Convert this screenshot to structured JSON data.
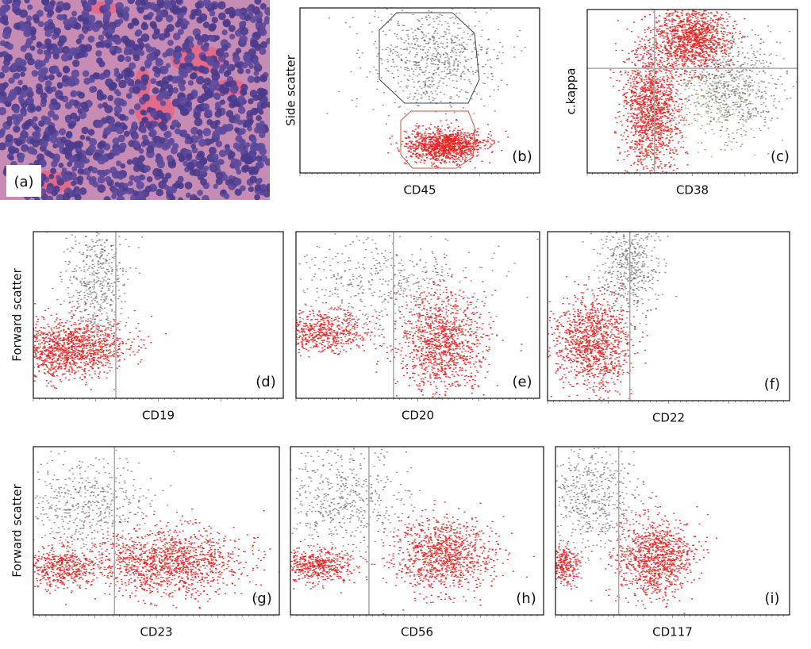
{
  "panels": [
    {
      "label": "(a)"
    },
    {
      "label": "(b)",
      "x_axis": "CD45",
      "y_axis": "Side scatter"
    },
    {
      "label": "(c)",
      "x_axis": "CD38",
      "y_axis": "c.kappa"
    },
    {
      "label": "(d)",
      "x_axis": "CD19",
      "y_axis": "Forward scatter"
    },
    {
      "label": "(e)",
      "x_axis": "CD20"
    },
    {
      "label": "(f)",
      "x_axis": "CD22"
    },
    {
      "label": "(g)",
      "x_axis": "CD23",
      "y_axis": "Forward scatter"
    },
    {
      "label": "(h)",
      "x_axis": "CD56"
    },
    {
      "label": "(i)",
      "x_axis": "CD117"
    }
  ]
}
